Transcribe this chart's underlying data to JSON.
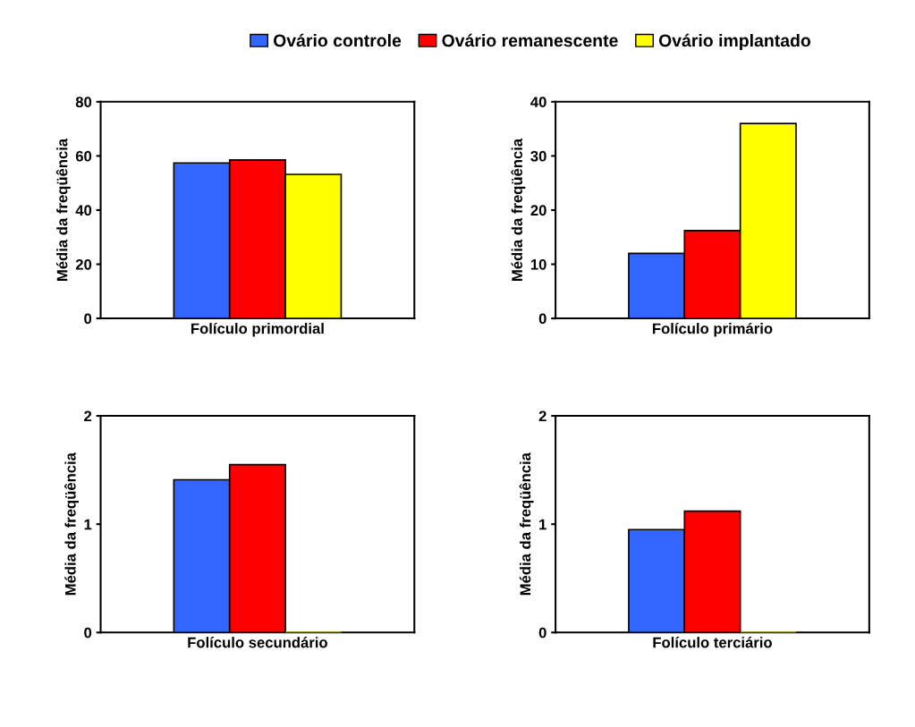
{
  "chart_data": [
    {
      "type": "bar",
      "ylabel": "Média da freqüência",
      "categories": [
        "Folículo primordial"
      ],
      "ylim": [
        0,
        80
      ],
      "yticks": [
        0,
        20,
        40,
        60,
        80
      ],
      "grid": false,
      "legend": "top",
      "series": [
        {
          "name": "Ovário controle",
          "color": "#3366ff",
          "values": [
            57.4
          ]
        },
        {
          "name": "Ovário remanescente",
          "color": "#ff0000",
          "values": [
            58.5
          ]
        },
        {
          "name": "Ovário implantado",
          "color": "#ffff00",
          "values": [
            53.2
          ]
        }
      ]
    },
    {
      "type": "bar",
      "ylabel": "Média da freqüência",
      "categories": [
        "Folículo primário"
      ],
      "ylim": [
        0,
        40
      ],
      "yticks": [
        0,
        10,
        20,
        30,
        40
      ],
      "grid": false,
      "series": [
        {
          "color": "#3366ff",
          "values": [
            12.0
          ]
        },
        {
          "color": "#ff0000",
          "values": [
            16.2
          ]
        },
        {
          "color": "#ffff00",
          "values": [
            36.0
          ]
        }
      ]
    },
    {
      "type": "bar",
      "ylabel": "Média da freqüência",
      "categories": [
        "Folículo secundário"
      ],
      "ylim": [
        0,
        2
      ],
      "yticks": [
        0,
        1,
        2
      ],
      "grid": false,
      "series": [
        {
          "color": "#3366ff",
          "values": [
            1.41
          ]
        },
        {
          "color": "#ff0000",
          "values": [
            1.55
          ]
        },
        {
          "color": "#ffff00",
          "values": [
            0
          ]
        }
      ]
    },
    {
      "type": "bar",
      "ylabel": "Média da freqüência",
      "categories": [
        "Folículo terciário"
      ],
      "ylim": [
        0,
        2
      ],
      "yticks": [
        0,
        1,
        2
      ],
      "grid": false,
      "series": [
        {
          "color": "#3366ff",
          "values": [
            0.95
          ]
        },
        {
          "color": "#ff0000",
          "values": [
            1.12
          ]
        },
        {
          "color": "#ffff00",
          "values": [
            0
          ]
        }
      ]
    }
  ]
}
